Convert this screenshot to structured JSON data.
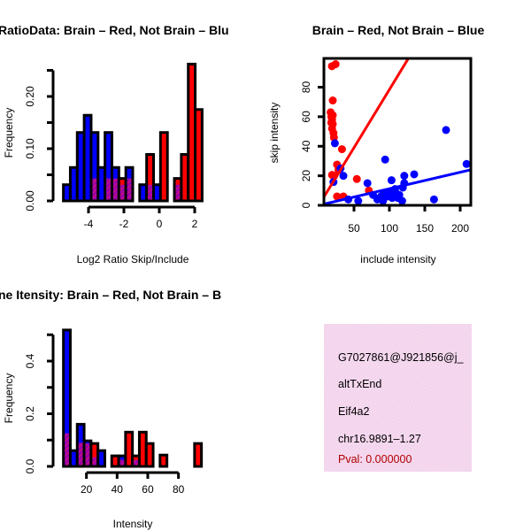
{
  "colors": {
    "red": "#ff0000",
    "blue": "#0000ff",
    "overlap": "#9900aa",
    "pval": "#b00000",
    "infobox": "#f5d9f0"
  },
  "chart_data": [
    {
      "type": "bar",
      "title": "RatioData: Brain – Red, Not Brain – Blu",
      "xlabel": "Log2 Ratio Skip/Include",
      "ylabel": "Frequency",
      "xticks": [
        "-4",
        "-2",
        "0",
        "2"
      ],
      "xtick_values": [
        -4,
        -2,
        0,
        2
      ],
      "yticks": [
        "0.00",
        "0.10",
        "0.20"
      ],
      "ytick_values": [
        0,
        0.05,
        0.1,
        0.15,
        0.2,
        0.25
      ],
      "ytick_labeled": [
        0,
        0.1,
        0.2
      ],
      "bin_start": -5.42,
      "bin_width": 0.392,
      "series": [
        {
          "name": "Not Brain",
          "color": "blue",
          "values": [
            0.031,
            0.064,
            0.131,
            0.164,
            0.131,
            0.064,
            0.131,
            0.064,
            0.031,
            0.064,
            0,
            0.031,
            0.031,
            0.031,
            0,
            0,
            0.031,
            0,
            0,
            0
          ]
        },
        {
          "name": "Brain",
          "color": "red",
          "values": [
            0,
            0,
            0,
            0,
            0.043,
            0,
            0.043,
            0.043,
            0.043,
            0.043,
            0,
            0,
            0.089,
            0,
            0.131,
            0,
            0.043,
            0.089,
            0.262,
            0.175
          ]
        }
      ]
    },
    {
      "type": "scatter",
      "title": "Brain – Red, Not Brain – Blue",
      "xlabel": "include intensity",
      "ylabel": "skip intensity",
      "xlim": [
        7.5,
        215
      ],
      "ylim": [
        0,
        99.5
      ],
      "xticks": [
        "50",
        "100",
        "150",
        "200"
      ],
      "xtick_values": [
        50,
        100,
        150,
        200
      ],
      "yticks": [
        "0",
        "20",
        "40",
        "60",
        "80"
      ],
      "ytick_values": [
        0,
        20,
        40,
        60,
        80
      ],
      "series": [
        {
          "name": "Brain",
          "color": "red",
          "points": [
            [
              18.8,
              94.2
            ],
            [
              24,
              95.6
            ],
            [
              20,
              71
            ],
            [
              17,
              63
            ],
            [
              18,
              60
            ],
            [
              19,
              58
            ],
            [
              20,
              55
            ],
            [
              19,
              52
            ],
            [
              21,
              49
            ],
            [
              18,
              56
            ],
            [
              20,
              61
            ],
            [
              21.6,
              46
            ],
            [
              33,
              38
            ],
            [
              26,
              27.6
            ],
            [
              19,
              20.6
            ],
            [
              22,
              20
            ],
            [
              54,
              17.8
            ],
            [
              26,
              6
            ],
            [
              35,
              6
            ],
            [
              71,
              10
            ],
            [
              28,
              24
            ]
          ],
          "fit": {
            "slope": 0.787,
            "intercept": -0.3
          }
        },
        {
          "name": "Not Brain",
          "color": "blue",
          "points": [
            [
              23,
              42
            ],
            [
              21,
              15.8
            ],
            [
              35,
              20
            ],
            [
              31,
              25
            ],
            [
              94,
              31
            ],
            [
              180,
              51
            ],
            [
              209,
              28
            ],
            [
              163,
              4
            ],
            [
              103,
              17
            ],
            [
              121,
              20
            ],
            [
              135,
              21
            ],
            [
              69,
              15
            ],
            [
              42,
              4
            ],
            [
              56,
              3
            ],
            [
              77,
              7
            ],
            [
              83,
              4
            ],
            [
              91,
              3
            ],
            [
              100,
              9
            ],
            [
              108,
              11
            ],
            [
              114,
              7
            ],
            [
              118,
              3
            ],
            [
              121,
              15
            ],
            [
              119,
              12
            ],
            [
              92,
              8
            ],
            [
              104,
              5
            ],
            [
              97,
              6
            ],
            [
              110,
              8
            ],
            [
              112,
              5
            ],
            [
              88,
              6
            ]
          ],
          "fit": {
            "slope": 0.112,
            "intercept": 0.0
          }
        }
      ]
    },
    {
      "type": "bar",
      "title": "ne Itensity: Brain – Red, Not Brain – B",
      "xlabel": "Intensity",
      "ylabel": "Frequency",
      "xticks": [
        "20",
        "40",
        "60",
        "80"
      ],
      "xtick_values": [
        20,
        40,
        60,
        80
      ],
      "yticks": [
        "0.0",
        "0.2",
        "0.4"
      ],
      "ytick_values": [
        0,
        0.1,
        0.2,
        0.3,
        0.4,
        0.5
      ],
      "ytick_labeled": [
        0,
        0.2,
        0.4
      ],
      "bin_start": 5,
      "bin_width": 4.5,
      "series": [
        {
          "name": "Not Brain",
          "color": "blue",
          "values": [
            0.518,
            0.06,
            0.16,
            0.097,
            0.035,
            0.06,
            0,
            0,
            0.04,
            0,
            0.025,
            0,
            0,
            0,
            0,
            0,
            0,
            0,
            0,
            0
          ]
        },
        {
          "name": "Brain",
          "color": "red",
          "values": [
            0.125,
            0,
            0.09,
            0.087,
            0.087,
            0,
            0,
            0.04,
            0.025,
            0.13,
            0.04,
            0.13,
            0.087,
            0,
            0.043,
            0,
            0,
            0,
            0,
            0.087
          ]
        }
      ]
    }
  ],
  "info": {
    "id": "G7027861@J921856@j_",
    "type": "altTxEnd",
    "gene": "Eif4a2",
    "location": "chr16.9891–1.27",
    "pval": "Pval: 0.000000"
  }
}
